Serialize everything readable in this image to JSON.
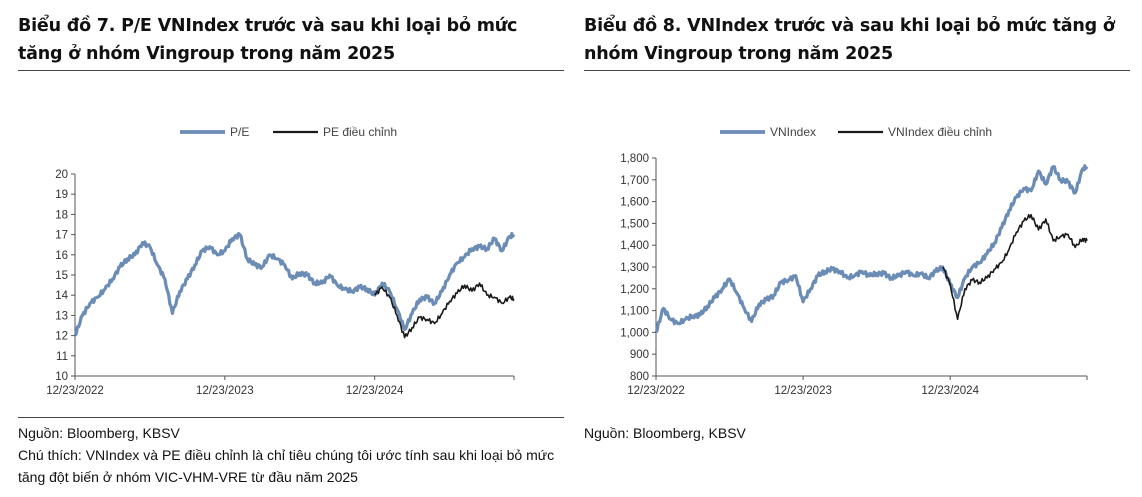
{
  "charts": [
    {
      "title": "Biểu đồ 7. P/E VNIndex trước và sau khi loại bỏ mức tăng ở nhóm Vingroup trong năm 2025",
      "source": "Nguồn: Bloomberg, KBSV",
      "caption": "Chú thích: VNIndex và PE điều chỉnh là chỉ tiêu chúng tôi ước tính sau khi loại bỏ mức tăng đột biến ở nhóm VIC-VHM-VRE từ đầu năm 2025"
    },
    {
      "title": "Biểu đồ 8. VNIndex trước và sau khi loại bỏ mức tăng ở nhóm Vingroup trong năm 2025",
      "source": "Nguồn: Bloomberg, KBSV",
      "caption": ""
    }
  ],
  "colors": {
    "primary_series": "#6b8cb5",
    "adjusted_series": "#1a1a1a",
    "axis": "#555555"
  },
  "chart_data": [
    {
      "type": "line",
      "title": "",
      "xlabel": "",
      "ylabel": "",
      "ylim": [
        10,
        20
      ],
      "y_ticks": [
        "10",
        "11",
        "12",
        "13",
        "14",
        "15",
        "16",
        "17",
        "18",
        "19",
        "20"
      ],
      "x_ticks": [
        {
          "t": 0,
          "label": "12/23/2022"
        },
        {
          "t": 1,
          "label": "12/23/2023"
        },
        {
          "t": 2,
          "label": "12/23/2024"
        }
      ],
      "xlim": [
        0,
        2.93
      ],
      "grid": false,
      "legend_placement": "top-center",
      "series": [
        {
          "name": "P/E",
          "x": [
            0,
            0.05,
            0.1,
            0.15,
            0.2,
            0.25,
            0.3,
            0.35,
            0.4,
            0.45,
            0.5,
            0.55,
            0.6,
            0.65,
            0.7,
            0.75,
            0.8,
            0.85,
            0.9,
            0.95,
            1.0,
            1.05,
            1.1,
            1.15,
            1.2,
            1.25,
            1.3,
            1.35,
            1.4,
            1.45,
            1.5,
            1.55,
            1.6,
            1.65,
            1.7,
            1.75,
            1.8,
            1.85,
            1.9,
            1.95,
            2.0,
            2.05,
            2.1,
            2.15,
            2.2,
            2.25,
            2.3,
            2.35,
            2.4,
            2.45,
            2.5,
            2.55,
            2.6,
            2.65,
            2.7,
            2.75,
            2.8,
            2.85,
            2.9,
            2.93
          ],
          "values": [
            12.0,
            13.0,
            13.6,
            13.9,
            14.3,
            14.8,
            15.4,
            15.8,
            16.0,
            16.6,
            16.4,
            15.5,
            14.8,
            13.1,
            14.2,
            14.8,
            15.5,
            16.2,
            16.4,
            16.0,
            16.2,
            16.8,
            17.0,
            15.8,
            15.5,
            15.4,
            16.0,
            15.8,
            15.5,
            14.8,
            15.1,
            15.0,
            14.6,
            14.6,
            15.0,
            14.5,
            14.3,
            14.2,
            14.4,
            14.3,
            14.0,
            14.6,
            14.2,
            13.3,
            12.3,
            13.1,
            13.8,
            13.9,
            13.6,
            14.2,
            15.0,
            15.6,
            15.9,
            16.3,
            16.4,
            16.3,
            16.8,
            16.2,
            16.9,
            17.0
          ]
        },
        {
          "name": "PE điều chỉnh",
          "x": [
            2.0,
            2.05,
            2.1,
            2.15,
            2.2,
            2.25,
            2.3,
            2.35,
            2.4,
            2.45,
            2.5,
            2.55,
            2.6,
            2.65,
            2.7,
            2.75,
            2.8,
            2.85,
            2.9,
            2.93
          ],
          "values": [
            14.0,
            14.4,
            13.9,
            13.0,
            11.9,
            12.4,
            12.9,
            12.8,
            12.6,
            13.1,
            13.7,
            14.1,
            14.5,
            14.2,
            14.6,
            14.0,
            13.9,
            13.6,
            13.9,
            13.8
          ]
        }
      ]
    },
    {
      "type": "line",
      "title": "",
      "xlabel": "",
      "ylabel": "",
      "ylim": [
        800,
        1800
      ],
      "y_ticks": [
        "800",
        "900",
        "1,000",
        "1,100",
        "1,200",
        "1,300",
        "1,400",
        "1,500",
        "1,600",
        "1,700",
        "1,800"
      ],
      "x_ticks": [
        {
          "t": 0,
          "label": "12/23/2022"
        },
        {
          "t": 1,
          "label": "12/23/2023"
        },
        {
          "t": 2,
          "label": "12/23/2024"
        }
      ],
      "xlim": [
        0,
        2.93
      ],
      "grid": false,
      "legend_placement": "top-center",
      "series": [
        {
          "name": "VNIndex",
          "x": [
            0,
            0.05,
            0.1,
            0.15,
            0.2,
            0.25,
            0.3,
            0.35,
            0.4,
            0.45,
            0.5,
            0.55,
            0.6,
            0.65,
            0.7,
            0.75,
            0.8,
            0.85,
            0.9,
            0.95,
            1.0,
            1.05,
            1.1,
            1.15,
            1.2,
            1.25,
            1.3,
            1.35,
            1.4,
            1.45,
            1.5,
            1.55,
            1.6,
            1.65,
            1.7,
            1.75,
            1.8,
            1.85,
            1.9,
            1.95,
            2.0,
            2.05,
            2.1,
            2.15,
            2.2,
            2.25,
            2.3,
            2.35,
            2.4,
            2.45,
            2.5,
            2.55,
            2.6,
            2.65,
            2.7,
            2.75,
            2.8,
            2.85,
            2.9,
            2.93
          ],
          "values": [
            1000,
            1110,
            1060,
            1040,
            1060,
            1075,
            1080,
            1120,
            1160,
            1200,
            1245,
            1180,
            1110,
            1050,
            1130,
            1150,
            1170,
            1230,
            1240,
            1260,
            1140,
            1200,
            1260,
            1280,
            1290,
            1280,
            1250,
            1260,
            1280,
            1260,
            1270,
            1270,
            1250,
            1260,
            1280,
            1260,
            1270,
            1250,
            1280,
            1300,
            1220,
            1160,
            1250,
            1300,
            1320,
            1360,
            1410,
            1480,
            1560,
            1620,
            1660,
            1650,
            1740,
            1680,
            1760,
            1700,
            1690,
            1640,
            1750,
            1760
          ]
        },
        {
          "name": "VNIndex điều chỉnh",
          "x": [
            1.95,
            2.0,
            2.05,
            2.1,
            2.15,
            2.2,
            2.25,
            2.3,
            2.35,
            2.4,
            2.45,
            2.5,
            2.55,
            2.6,
            2.65,
            2.7,
            2.75,
            2.8,
            2.85,
            2.9,
            2.93
          ],
          "values": [
            1300,
            1220,
            1060,
            1200,
            1240,
            1230,
            1250,
            1290,
            1320,
            1380,
            1460,
            1510,
            1540,
            1470,
            1520,
            1420,
            1440,
            1450,
            1390,
            1430,
            1420
          ]
        }
      ]
    }
  ]
}
